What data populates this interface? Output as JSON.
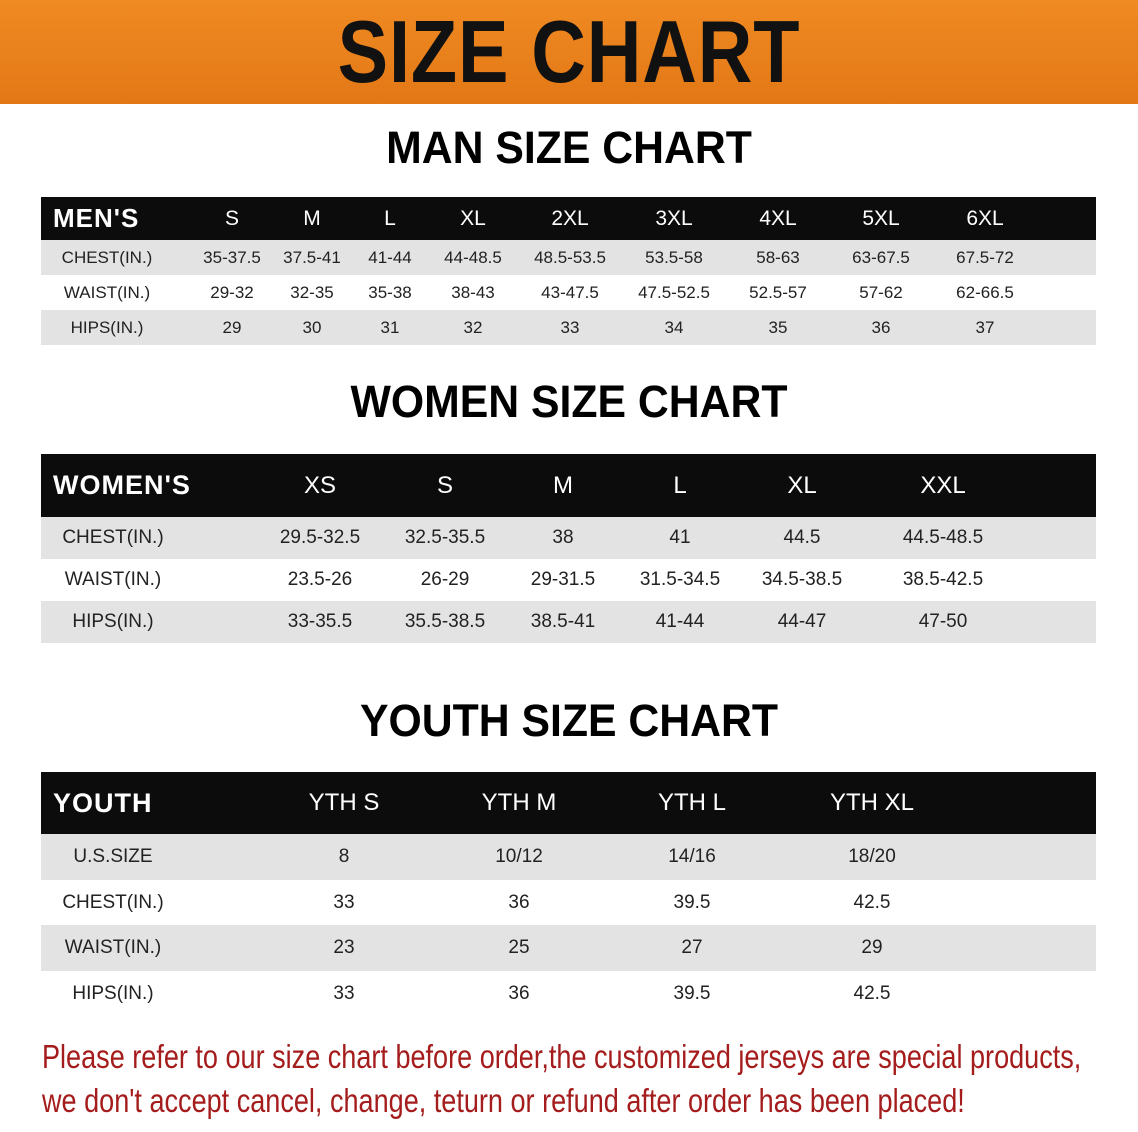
{
  "banner_title": "SIZE CHART",
  "colors": {
    "banner": "#e8801a",
    "header_row": "#0c0c0c",
    "stripe": "#e3e3e3",
    "notice": "#a51c1c"
  },
  "men": {
    "title": "MAN SIZE CHART",
    "header": "MEN'S",
    "sizes": [
      "S",
      "M",
      "L",
      "XL",
      "2XL",
      "3XL",
      "4XL",
      "5XL",
      "6XL"
    ],
    "rows": [
      {
        "label": "CHEST(IN.)",
        "values": [
          "35-37.5",
          "37.5-41",
          "41-44",
          "44-48.5",
          "48.5-53.5",
          "53.5-58",
          "58-63",
          "63-67.5",
          "67.5-72"
        ]
      },
      {
        "label": "WAIST(IN.)",
        "values": [
          "29-32",
          "32-35",
          "35-38",
          "38-43",
          "43-47.5",
          "47.5-52.5",
          "52.5-57",
          "57-62",
          "62-66.5"
        ]
      },
      {
        "label": "HIPS(IN.)",
        "values": [
          "29",
          "30",
          "31",
          "32",
          "33",
          "34",
          "35",
          "36",
          "37"
        ]
      }
    ]
  },
  "women": {
    "title": "WOMEN SIZE CHART",
    "header": "WOMEN'S",
    "sizes": [
      "XS",
      "S",
      "M",
      "L",
      "XL",
      "XXL"
    ],
    "rows": [
      {
        "label": "CHEST(IN.)",
        "values": [
          "29.5-32.5",
          "32.5-35.5",
          "38",
          "41",
          "44.5",
          "44.5-48.5"
        ]
      },
      {
        "label": "WAIST(IN.)",
        "values": [
          "23.5-26",
          "26-29",
          "29-31.5",
          "31.5-34.5",
          "34.5-38.5",
          "38.5-42.5"
        ]
      },
      {
        "label": "HIPS(IN.)",
        "values": [
          "33-35.5",
          "35.5-38.5",
          "38.5-41",
          "41-44",
          "44-47",
          "47-50"
        ]
      }
    ]
  },
  "youth": {
    "title": "YOUTH SIZE CHART",
    "header": "YOUTH",
    "sizes": [
      "YTH S",
      "YTH M",
      "YTH L",
      "YTH XL"
    ],
    "rows": [
      {
        "label": "U.S.SIZE",
        "values": [
          "8",
          "10/12",
          "14/16",
          "18/20"
        ]
      },
      {
        "label": "CHEST(IN.)",
        "values": [
          "33",
          "36",
          "39.5",
          "42.5"
        ]
      },
      {
        "label": "WAIST(IN.)",
        "values": [
          "23",
          "25",
          "27",
          "29"
        ]
      },
      {
        "label": "HIPS(IN.)",
        "values": [
          "33",
          "36",
          "39.5",
          "42.5"
        ]
      }
    ]
  },
  "notice": [
    "Please refer to our size chart before order,the customized jerseys are special products,",
    "we don't accept cancel, change, teturn or refund after order has been placed!"
  ]
}
